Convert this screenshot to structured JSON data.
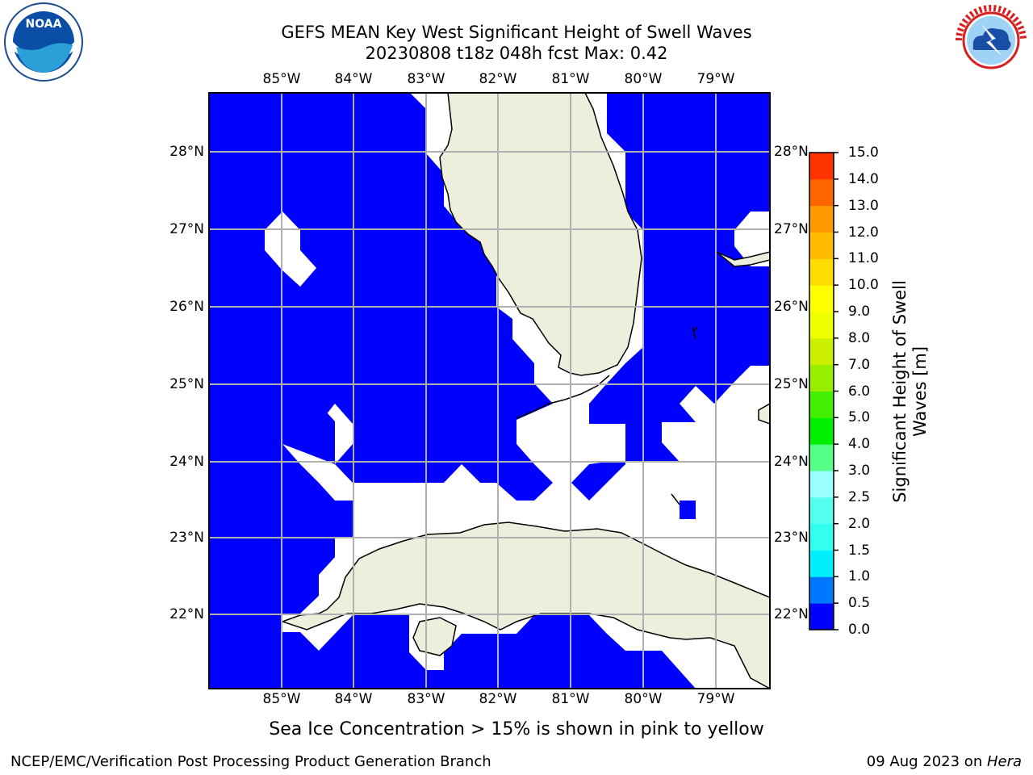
{
  "header": {
    "title_line1": "GEFS MEAN Key West Significant Height of Swell Waves",
    "title_line2": "20230808 t18z 048h fcst   Max: 0.42"
  },
  "logos": {
    "left": {
      "icon": "noaa-logo",
      "text": "NOAA"
    },
    "right": {
      "icon": "nws-logo",
      "text": "NATIONAL WEATHER SERVICE"
    }
  },
  "map": {
    "extent": {
      "lon_min": -86.0,
      "lon_max": -78.25,
      "lat_min": 21.0,
      "lat_max": 28.75
    },
    "lon_ticks": [
      "85°W",
      "84°W",
      "83°W",
      "82°W",
      "81°W",
      "80°W",
      "79°W"
    ],
    "lat_ticks": [
      "28°N",
      "27°N",
      "26°N",
      "25°N",
      "24°N",
      "23°N",
      "22°N"
    ],
    "colors": {
      "ocean_fill": "#0000ff",
      "land": "#eeeedd",
      "grid": "#b0b0b0",
      "missing": "#ffffff"
    }
  },
  "colorbar": {
    "title_line1": "Significant Height of Swell",
    "title_line2": "Waves [m]",
    "labels": [
      "0.0",
      "0.5",
      "1.0",
      "1.5",
      "2.0",
      "2.5",
      "3.0",
      "4.0",
      "5.0",
      "6.0",
      "7.0",
      "8.0",
      "9.0",
      "10.0",
      "11.0",
      "12.0",
      "13.0",
      "14.0",
      "15.0"
    ],
    "colors": [
      "#0000ff",
      "#0077ff",
      "#00eeff",
      "#33ffee",
      "#55ffee",
      "#99ffff",
      "#55ff88",
      "#00ee00",
      "#44ee00",
      "#99ee00",
      "#ccee00",
      "#eeff00",
      "#ffff00",
      "#ffdd00",
      "#ffbb00",
      "#ff9900",
      "#ff6600",
      "#ff3300",
      "#ff0000"
    ]
  },
  "footer": {
    "sea_ice_note": "Sea Ice Concentration > 15% is shown in pink to yellow",
    "credit": "NCEP/EMC/Verification Post Processing Product Generation Branch",
    "date": "09 Aug 2023 on ",
    "machine": "Hera"
  }
}
